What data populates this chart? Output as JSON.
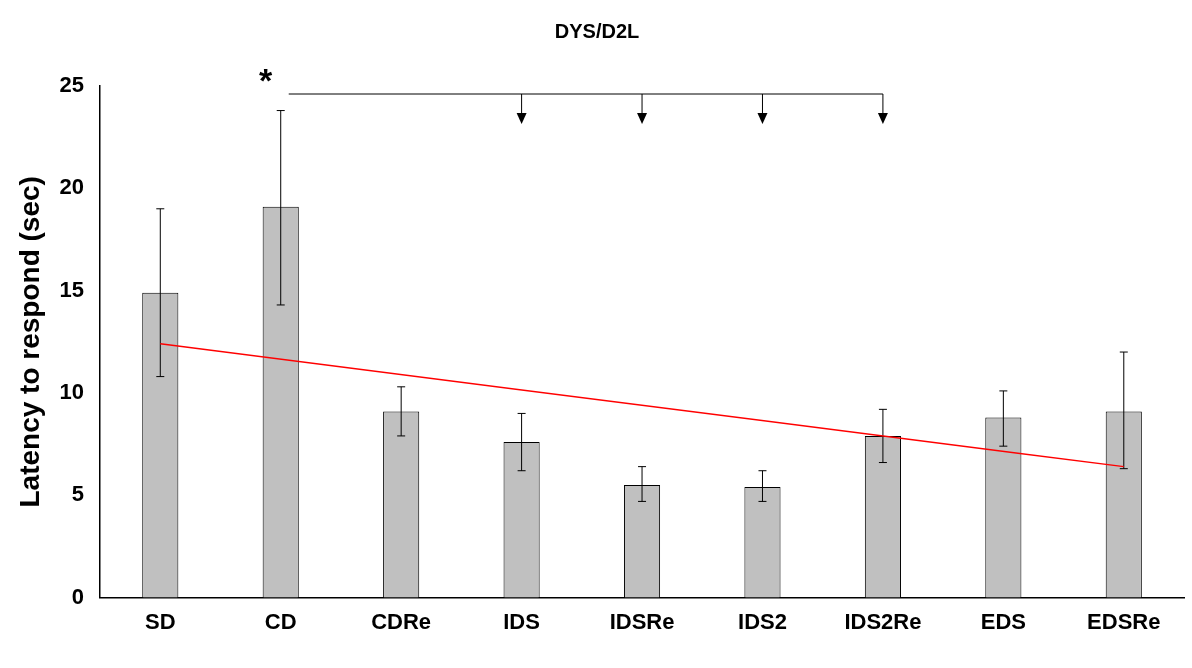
{
  "chart_data": {
    "type": "bar",
    "title": "DYS/D2L",
    "ylabel": "Latency to respond (sec)",
    "categories": [
      "SD",
      "CD",
      "CDRe",
      "IDS",
      "IDSRe",
      "IDS2",
      "IDS2Re",
      "EDS",
      "EDSRe"
    ],
    "series": [
      {
        "color": "#c0c0c0",
        "values": [
          14.9,
          19.1,
          9.1,
          7.6,
          5.5,
          5.4,
          7.9,
          8.8,
          9.1
        ],
        "errors": [
          [
            10.8,
            19.0
          ],
          [
            14.3,
            23.8
          ],
          [
            7.9,
            10.3
          ],
          [
            6.2,
            9.0
          ],
          [
            4.7,
            6.4
          ],
          [
            4.7,
            6.2
          ],
          [
            6.6,
            9.2
          ],
          [
            7.4,
            10.1
          ],
          [
            6.3,
            12.0
          ]
        ]
      },
      {
        "type": "line",
        "color": "#ff0000",
        "x": [
          "SD",
          "EDSRe"
        ],
        "values": [
          12.4,
          6.4
        ]
      }
    ],
    "annotations": [
      "*"
    ],
    "ylim": [
      0,
      25
    ],
    "yticks": [
      0,
      5,
      10,
      15,
      20,
      25
    ],
    "grid": false,
    "legend": false
  }
}
